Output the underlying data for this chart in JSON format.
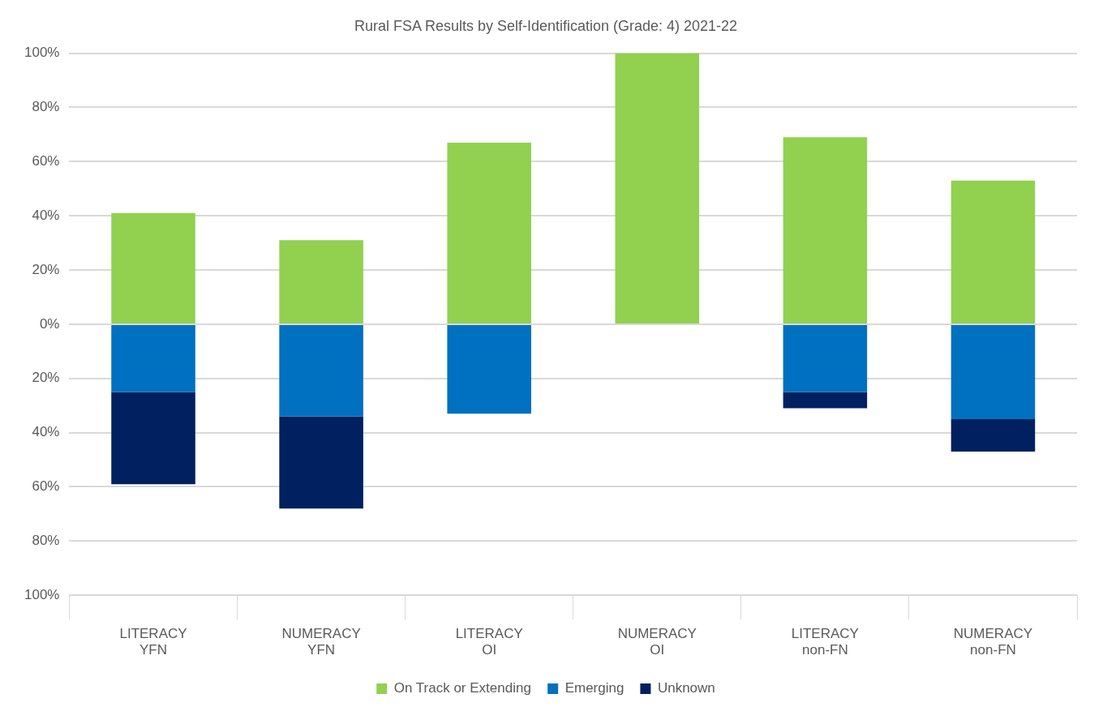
{
  "chart_data": {
    "type": "bar",
    "title": "Rural FSA Results by Self-Identification (Grade: 4) 2021-22",
    "categories": [
      "LITERACY\nYFN",
      "NUMERACY\nYFN",
      "LITERACY\nOI",
      "NUMERACY\nOI",
      "LITERACY\nnon-FN",
      "NUMERACY\nnon-FN"
    ],
    "stacked": true,
    "series": [
      {
        "name": "On Track or Extending",
        "color": "#92d050",
        "values": [
          41,
          31,
          67,
          100,
          69,
          53
        ]
      },
      {
        "name": "Emerging",
        "color": "#0070c0",
        "values": [
          -25,
          -34,
          -33,
          0,
          -25,
          -35
        ]
      },
      {
        "name": "Unknown",
        "color": "#002060",
        "values": [
          -34,
          -34,
          0,
          0,
          -6,
          -12
        ]
      }
    ],
    "ylim": [
      -100,
      100
    ],
    "yticks": [
      {
        "value": -100,
        "label": "100%"
      },
      {
        "value": -80,
        "label": "80%"
      },
      {
        "value": -60,
        "label": "60%"
      },
      {
        "value": -40,
        "label": "40%"
      },
      {
        "value": -20,
        "label": "20%"
      },
      {
        "value": 0,
        "label": "0%"
      },
      {
        "value": 20,
        "label": "20%"
      },
      {
        "value": 40,
        "label": "40%"
      },
      {
        "value": 60,
        "label": "60%"
      },
      {
        "value": 80,
        "label": "80%"
      },
      {
        "value": 100,
        "label": "100%"
      }
    ],
    "grid": "y",
    "legend": "bottom"
  }
}
